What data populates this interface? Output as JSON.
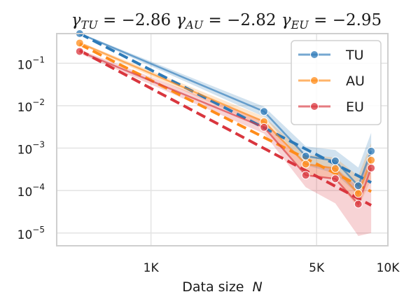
{
  "chart_data": {
    "type": "line",
    "title_parts": [
      {
        "sym": "γ",
        "sub": "TU",
        "eq": " = −2.86 "
      },
      {
        "sym": "γ",
        "sub": "AU",
        "eq": " = −2.82 "
      },
      {
        "sym": "γ",
        "sub": "EU",
        "eq": " = −2.95"
      }
    ],
    "xlabel": "Data size",
    "xlabel_var": "N",
    "x_scale": "log",
    "y_scale": "log",
    "xlim": [
      400,
      10000
    ],
    "ylim": [
      5e-06,
      0.5
    ],
    "x_ticks": [
      {
        "value": 1000,
        "label": "1K"
      },
      {
        "value": 5000,
        "label": "5K"
      },
      {
        "value": 10000,
        "label": "10K"
      }
    ],
    "y_ticks": [
      {
        "value": 0.1,
        "base": "10",
        "exp": "−1"
      },
      {
        "value": 0.01,
        "base": "10",
        "exp": "−2"
      },
      {
        "value": 0.001,
        "base": "10",
        "exp": "−3"
      },
      {
        "value": 0.0001,
        "base": "10",
        "exp": "−4"
      },
      {
        "value": 1e-05,
        "base": "10",
        "exp": "−5"
      }
    ],
    "grid": true,
    "legend_position": "top-right",
    "x": [
      500,
      3000,
      4500,
      6000,
      7500,
      8500
    ],
    "series": [
      {
        "name": "TU",
        "color": "#2d7ab8",
        "values": [
          0.5,
          0.0073,
          0.00065,
          0.0005,
          0.00013,
          0.00085
        ],
        "band_low": [
          0.48,
          0.0055,
          0.0004,
          0.00025,
          8e-05,
          0.00035
        ],
        "band_high": [
          0.52,
          0.0095,
          0.0011,
          0.0009,
          0.00035,
          0.0023
        ],
        "fit": [
          [
            500,
            0.5
          ],
          [
            8500,
            0.000155
          ]
        ]
      },
      {
        "name": "AU",
        "color": "#ff8c1a",
        "values": [
          0.3,
          0.0042,
          0.00042,
          0.00033,
          8.5e-05,
          0.00052
        ],
        "band_low": [
          0.28,
          0.0032,
          0.00023,
          0.00018,
          4e-05,
          0.00018
        ],
        "band_high": [
          0.32,
          0.0055,
          0.0007,
          0.0006,
          0.00022,
          0.0013
        ],
        "fit": [
          [
            500,
            0.28
          ],
          [
            8500,
            9.5e-05
          ]
        ]
      },
      {
        "name": "EU",
        "color": "#d9363e",
        "values": [
          0.19,
          0.0031,
          0.00023,
          0.00019,
          4.8e-05,
          0.00034
        ],
        "band_low": [
          0.17,
          0.0022,
          0.00012,
          5e-05,
          8.5e-06,
          1e-05
        ],
        "band_high": [
          0.21,
          0.0045,
          0.00045,
          0.00035,
          0.00012,
          0.0008
        ],
        "fit": [
          [
            500,
            0.2
          ],
          [
            8500,
            4.5e-05
          ]
        ]
      }
    ]
  }
}
